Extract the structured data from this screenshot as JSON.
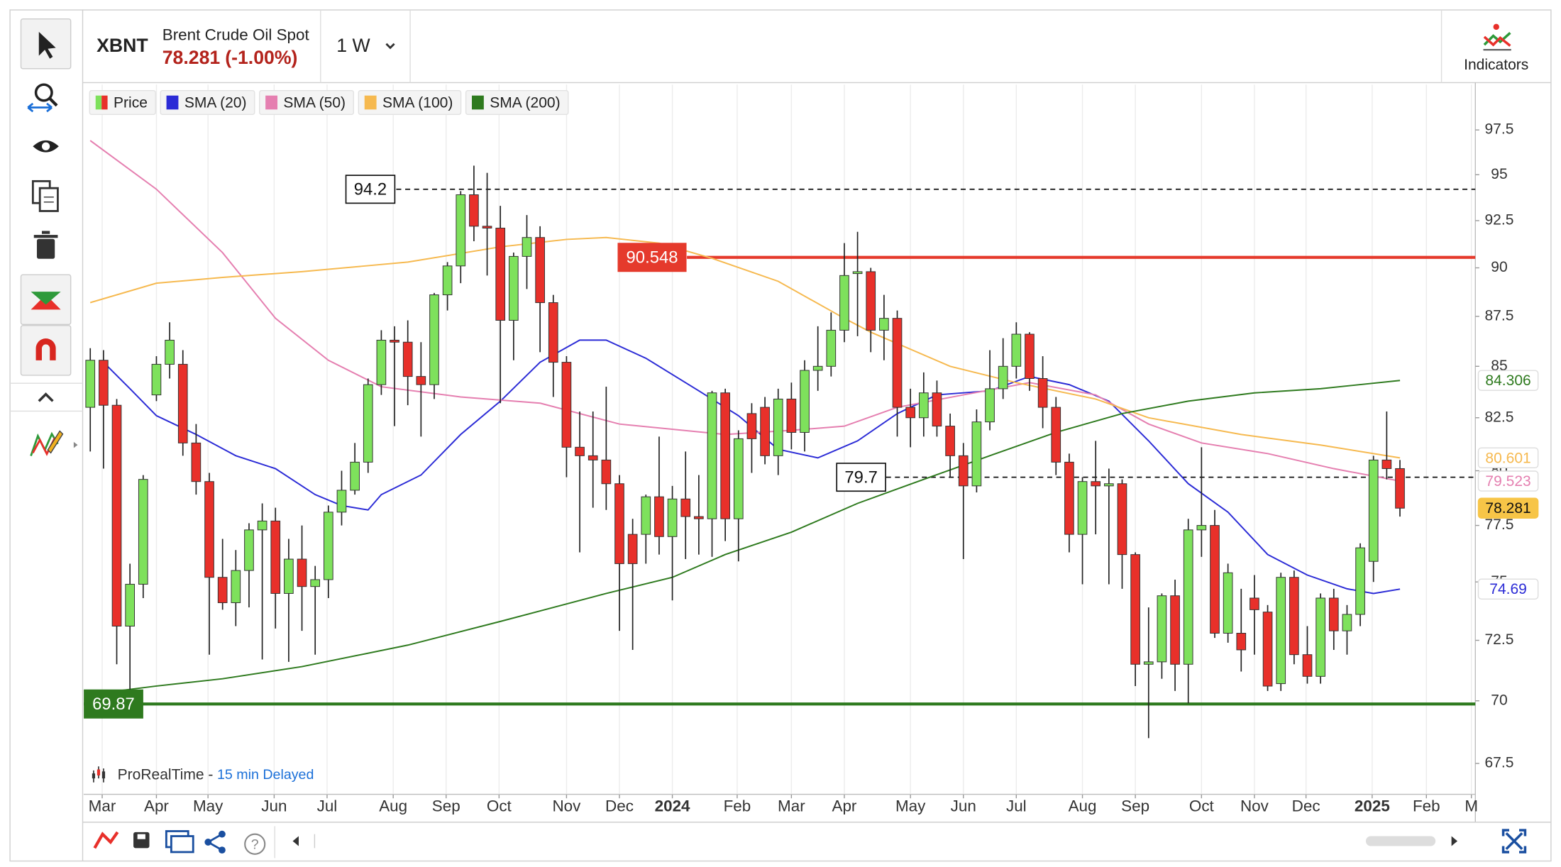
{
  "header": {
    "symbol": "XBNT",
    "name": "Brent Crude Oil Spot",
    "change": "(-1.00%)",
    "timeframe": "1 W",
    "indicators": "Indicators"
  },
  "chart_data": {
    "type": "candlestick",
    "log_scale": true,
    "xgrid": true,
    "price_name": "Price",
    "up_color": "#7ee15c",
    "down_color": "#e8302a",
    "candles": [
      [
        83.0,
        85.9,
        80.9,
        85.3
      ],
      [
        85.3,
        85.8,
        80.1,
        83.1
      ],
      [
        83.1,
        83.4,
        71.5,
        73.1
      ],
      [
        73.1,
        75.8,
        70.3,
        74.9
      ],
      [
        74.9,
        79.8,
        74.3,
        79.6
      ],
      [
        83.6,
        85.5,
        83.3,
        85.1
      ],
      [
        85.1,
        87.2,
        84.4,
        86.3
      ],
      [
        85.1,
        85.8,
        80.7,
        81.3
      ],
      [
        81.3,
        82.2,
        78.9,
        79.5
      ],
      [
        79.5,
        79.9,
        71.9,
        75.2
      ],
      [
        75.2,
        76.9,
        73.8,
        74.1
      ],
      [
        74.1,
        76.4,
        73.1,
        75.5
      ],
      [
        75.5,
        77.6,
        73.9,
        77.3
      ],
      [
        77.3,
        78.5,
        71.7,
        77.7
      ],
      [
        77.7,
        78.3,
        73.0,
        74.5
      ],
      [
        74.5,
        76.9,
        71.6,
        76.0
      ],
      [
        76.0,
        77.5,
        72.9,
        74.8
      ],
      [
        74.8,
        75.7,
        71.9,
        75.1
      ],
      [
        75.1,
        78.4,
        74.3,
        78.1
      ],
      [
        78.1,
        80.0,
        77.5,
        79.1
      ],
      [
        79.1,
        81.3,
        78.9,
        80.4
      ],
      [
        80.4,
        84.4,
        79.9,
        84.1
      ],
      [
        84.1,
        86.8,
        83.6,
        86.3
      ],
      [
        86.3,
        87.0,
        82.1,
        86.2
      ],
      [
        86.2,
        87.3,
        83.1,
        84.5
      ],
      [
        84.5,
        86.2,
        81.6,
        84.1
      ],
      [
        84.1,
        88.7,
        83.4,
        88.6
      ],
      [
        88.6,
        90.3,
        87.8,
        90.1
      ],
      [
        90.1,
        94.1,
        89.2,
        93.9
      ],
      [
        93.9,
        95.5,
        91.4,
        92.2
      ],
      [
        92.2,
        95.1,
        89.6,
        92.1
      ],
      [
        92.1,
        93.3,
        83.2,
        87.3
      ],
      [
        87.3,
        90.8,
        85.3,
        90.6
      ],
      [
        90.6,
        92.8,
        88.9,
        91.6
      ],
      [
        91.6,
        92.2,
        85.7,
        88.2
      ],
      [
        88.2,
        88.6,
        83.5,
        85.2
      ],
      [
        85.2,
        85.5,
        79.7,
        81.1
      ],
      [
        81.1,
        82.8,
        76.3,
        80.7
      ],
      [
        80.7,
        82.8,
        78.3,
        80.5
      ],
      [
        80.5,
        84.0,
        78.2,
        79.4
      ],
      [
        79.4,
        79.8,
        72.9,
        75.8
      ],
      [
        77.1,
        77.8,
        72.1,
        75.8
      ],
      [
        77.1,
        78.9,
        75.8,
        78.8
      ],
      [
        78.8,
        81.6,
        76.2,
        77.0
      ],
      [
        77.0,
        79.3,
        74.2,
        78.7
      ],
      [
        78.7,
        80.9,
        76.0,
        77.9
      ],
      [
        77.9,
        79.8,
        76.2,
        77.8
      ],
      [
        77.8,
        83.8,
        76.1,
        83.7
      ],
      [
        83.7,
        83.9,
        76.8,
        77.8
      ],
      [
        77.8,
        81.9,
        75.9,
        81.5
      ],
      [
        82.7,
        83.2,
        79.9,
        81.5
      ],
      [
        83.0,
        83.5,
        80.3,
        80.7
      ],
      [
        80.7,
        83.9,
        79.8,
        83.4
      ],
      [
        83.4,
        84.2,
        81.0,
        81.8
      ],
      [
        81.8,
        85.3,
        80.9,
        84.8
      ],
      [
        84.8,
        87.0,
        83.8,
        85.0
      ],
      [
        85.0,
        87.7,
        84.5,
        86.8
      ],
      [
        86.8,
        91.3,
        86.2,
        89.6
      ],
      [
        89.7,
        91.9,
        86.5,
        89.8
      ],
      [
        89.8,
        90.0,
        85.7,
        86.8
      ],
      [
        86.8,
        88.6,
        85.3,
        87.4
      ],
      [
        87.4,
        87.8,
        81.6,
        83.0
      ],
      [
        83.0,
        83.9,
        81.1,
        82.5
      ],
      [
        82.5,
        84.7,
        81.6,
        83.7
      ],
      [
        83.7,
        84.3,
        81.6,
        82.1
      ],
      [
        82.1,
        82.7,
        79.7,
        80.7
      ],
      [
        80.7,
        81.3,
        76.0,
        79.3
      ],
      [
        79.3,
        82.9,
        79.0,
        82.3
      ],
      [
        82.3,
        85.8,
        81.9,
        83.9
      ],
      [
        83.9,
        86.4,
        83.4,
        85.0
      ],
      [
        85.0,
        87.2,
        84.4,
        86.6
      ],
      [
        86.6,
        86.7,
        83.8,
        84.4
      ],
      [
        84.4,
        85.5,
        82.0,
        83.0
      ],
      [
        83.0,
        83.5,
        79.8,
        80.4
      ],
      [
        80.4,
        80.8,
        76.3,
        77.1
      ],
      [
        77.1,
        79.7,
        74.9,
        79.5
      ],
      [
        79.5,
        81.4,
        77.1,
        79.3
      ],
      [
        79.3,
        80.1,
        74.9,
        79.4
      ],
      [
        79.4,
        79.6,
        74.7,
        76.2
      ],
      [
        76.2,
        76.3,
        70.6,
        71.5
      ],
      [
        71.5,
        73.9,
        68.5,
        71.6
      ],
      [
        71.6,
        74.5,
        70.9,
        74.4
      ],
      [
        74.4,
        75.1,
        70.4,
        71.5
      ],
      [
        71.5,
        77.8,
        69.9,
        77.3
      ],
      [
        77.3,
        81.1,
        76.1,
        77.5
      ],
      [
        77.5,
        78.2,
        72.6,
        72.8
      ],
      [
        72.8,
        75.8,
        72.4,
        75.4
      ],
      [
        72.8,
        74.7,
        71.2,
        72.1
      ],
      [
        74.3,
        75.3,
        71.9,
        73.8
      ],
      [
        73.7,
        74.0,
        70.4,
        70.6
      ],
      [
        70.7,
        75.4,
        70.4,
        75.2
      ],
      [
        75.2,
        75.5,
        71.5,
        71.9
      ],
      [
        71.9,
        73.1,
        70.7,
        71.0
      ],
      [
        71.0,
        74.5,
        70.7,
        74.3
      ],
      [
        74.3,
        74.7,
        72.1,
        72.9
      ],
      [
        72.9,
        74.0,
        71.9,
        73.6
      ],
      [
        73.6,
        76.7,
        73.1,
        76.5
      ],
      [
        75.9,
        80.7,
        75.0,
        80.5
      ],
      [
        80.5,
        82.8,
        79.6,
        80.1
      ],
      [
        80.1,
        80.5,
        77.9,
        78.281
      ]
    ],
    "series": [
      {
        "name": "SMA (20)",
        "color": "#2b2bd6",
        "x": [
          1,
          3,
          5,
          8,
          11,
          14,
          17,
          19,
          21,
          22,
          25,
          28,
          31,
          34,
          37,
          39,
          42,
          46,
          49,
          52,
          55,
          58,
          61,
          64,
          68,
          71,
          74,
          77,
          80,
          83,
          86,
          89,
          92,
          95,
          97,
          99
        ],
        "values": [
          85.2,
          83.9,
          82.6,
          81.7,
          80.7,
          80.1,
          78.9,
          78.4,
          78.2,
          78.9,
          79.8,
          81.7,
          83.3,
          85.2,
          86.3,
          86.3,
          85.4,
          83.8,
          82.6,
          81.0,
          80.6,
          81.4,
          82.7,
          83.6,
          83.8,
          84.5,
          84.1,
          83.3,
          81.4,
          79.4,
          78.1,
          76.2,
          75.3,
          74.7,
          74.5,
          74.69
        ]
      },
      {
        "name": "SMA (50)",
        "color": "#e57fb0",
        "x": [
          0,
          5,
          10,
          14,
          18,
          22,
          28,
          34,
          40,
          48,
          53,
          57,
          61,
          66,
          71,
          76,
          80,
          84,
          89,
          94,
          99
        ],
        "values": [
          96.9,
          94.2,
          90.8,
          87.4,
          85.3,
          84.0,
          83.5,
          83.2,
          82.2,
          81.7,
          81.9,
          82.1,
          83.0,
          83.6,
          84.2,
          83.6,
          82.2,
          81.3,
          80.8,
          80.1,
          79.523
        ]
      },
      {
        "name": "SMA (100)",
        "color": "#f6b94f",
        "x": [
          0,
          5,
          10,
          16,
          24,
          31,
          36,
          39,
          43,
          47,
          52,
          57,
          59,
          65,
          70,
          76,
          80,
          87,
          93,
          99
        ],
        "values": [
          88.2,
          89.2,
          89.5,
          89.8,
          90.3,
          91.1,
          91.5,
          91.6,
          91.3,
          90.5,
          89.3,
          87.4,
          86.7,
          85.0,
          84.2,
          83.4,
          82.5,
          81.7,
          81.2,
          80.601
        ]
      },
      {
        "name": "SMA (200)",
        "color": "#2e7a1e",
        "x": [
          2,
          5,
          10,
          16,
          24,
          31,
          39,
          44,
          48,
          53,
          58,
          63,
          68,
          73,
          78,
          83,
          88,
          93,
          99
        ],
        "values": [
          70.4,
          70.6,
          70.9,
          71.4,
          72.3,
          73.3,
          74.5,
          75.2,
          76.2,
          77.2,
          78.5,
          79.6,
          80.7,
          81.8,
          82.7,
          83.3,
          83.7,
          83.9,
          84.306
        ]
      }
    ],
    "levels": [
      {
        "value": 94.2,
        "style": "dashed",
        "color": "#111111"
      },
      {
        "value": 90.548,
        "style": "solid",
        "color": "#e53a2c"
      },
      {
        "value": 79.7,
        "style": "dashed",
        "color": "#111111"
      },
      {
        "value": 69.87,
        "style": "solid",
        "color": "#2e7a1e"
      }
    ],
    "xlim": [
      -0.5,
      104.7
    ],
    "xticks": [
      {
        "value": 0.9,
        "label": "Mar"
      },
      {
        "value": 5.0,
        "label": "Apr"
      },
      {
        "value": 8.9,
        "label": "May"
      },
      {
        "value": 13.9,
        "label": "Jun"
      },
      {
        "value": 17.9,
        "label": "Jul"
      },
      {
        "value": 22.9,
        "label": "Aug"
      },
      {
        "value": 26.9,
        "label": "Sep"
      },
      {
        "value": 30.9,
        "label": "Oct"
      },
      {
        "value": 36.0,
        "label": "Nov"
      },
      {
        "value": 40.0,
        "label": "Dec"
      },
      {
        "value": 44.0,
        "label": "2024"
      },
      {
        "value": 48.9,
        "label": "Feb"
      },
      {
        "value": 53.0,
        "label": "Mar"
      },
      {
        "value": 57.0,
        "label": "Apr"
      },
      {
        "value": 62.0,
        "label": "May"
      },
      {
        "value": 66.0,
        "label": "Jun"
      },
      {
        "value": 70.0,
        "label": "Jul"
      },
      {
        "value": 75.0,
        "label": "Aug"
      },
      {
        "value": 79.0,
        "label": "Sep"
      },
      {
        "value": 84.0,
        "label": "Oct"
      },
      {
        "value": 88.0,
        "label": "Nov"
      },
      {
        "value": 91.9,
        "label": "Dec"
      },
      {
        "value": 96.9,
        "label": "2025"
      },
      {
        "value": 101.0,
        "label": "Feb"
      },
      {
        "value": 104.4,
        "label": "M"
      }
    ],
    "ylim": [
      66.3,
      100.1
    ],
    "yticks": [
      67.5,
      70,
      72.5,
      75,
      77.5,
      80,
      82.5,
      85,
      87.5,
      90,
      92.5,
      95,
      97.5
    ]
  },
  "footer": {
    "source": "ProRealTime - ",
    "delay": "15 min Delayed"
  }
}
